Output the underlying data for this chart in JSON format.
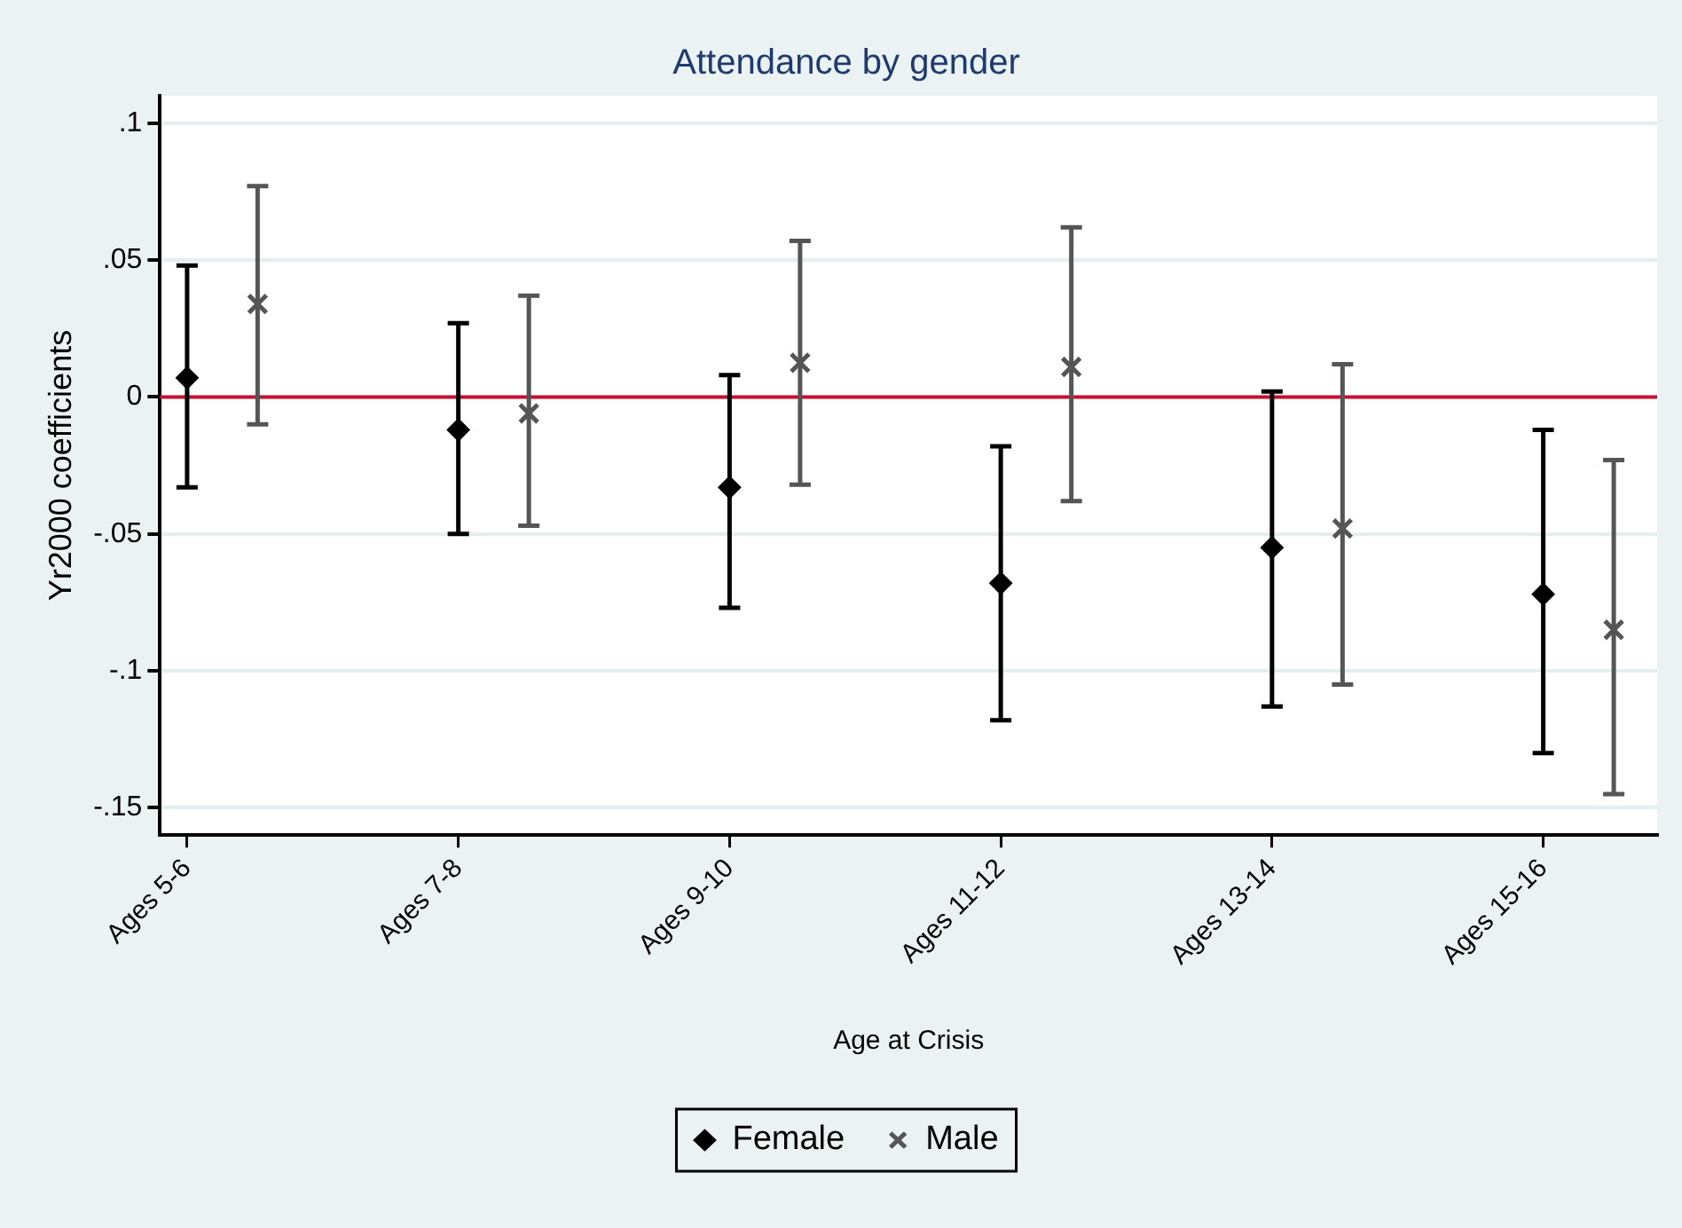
{
  "chart_data": {
    "type": "scatter",
    "title": "Attendance by gender",
    "xlabel": "Age at Crisis",
    "ylabel": "Yr2000 coefficients",
    "categories": [
      "Ages 5-6",
      "Ages 7-8",
      "Ages 9-10",
      "Ages 11-12",
      "Ages 13-14",
      "Ages 15-16"
    ],
    "series": [
      {
        "name": "Female",
        "color": "#000000",
        "marker": "diamond",
        "values": [
          0.007,
          -0.012,
          -0.033,
          -0.068,
          -0.055,
          -0.072
        ],
        "errors": [
          [
            -0.033,
            0.048
          ],
          [
            -0.05,
            0.027
          ],
          [
            -0.077,
            0.008
          ],
          [
            -0.118,
            -0.018
          ],
          [
            -0.113,
            0.002
          ],
          [
            -0.13,
            -0.012
          ]
        ]
      },
      {
        "name": "Male",
        "color": "#555555",
        "marker": "cross",
        "values": [
          0.034,
          -0.006,
          0.0125,
          0.011,
          -0.048,
          -0.085
        ],
        "errors": [
          [
            -0.01,
            0.077
          ],
          [
            -0.047,
            0.037
          ],
          [
            -0.032,
            0.057
          ],
          [
            -0.038,
            0.062
          ],
          [
            -0.105,
            0.012
          ],
          [
            -0.145,
            -0.023
          ]
        ]
      }
    ],
    "ylim": [
      -0.16,
      0.11
    ],
    "yticks": [
      {
        "value": -0.15,
        "label": "-.15"
      },
      {
        "value": -0.1,
        "label": "-.1"
      },
      {
        "value": -0.05,
        "label": "-.05"
      },
      0,
      {
        "value": 0.05,
        "label": ".05"
      },
      {
        "value": 0.1,
        "label": ".1"
      }
    ],
    "ref_lines": [
      {
        "axis": "y",
        "value": 0,
        "color": "#c8102e"
      }
    ],
    "grid": "y",
    "legend": "bottom"
  }
}
